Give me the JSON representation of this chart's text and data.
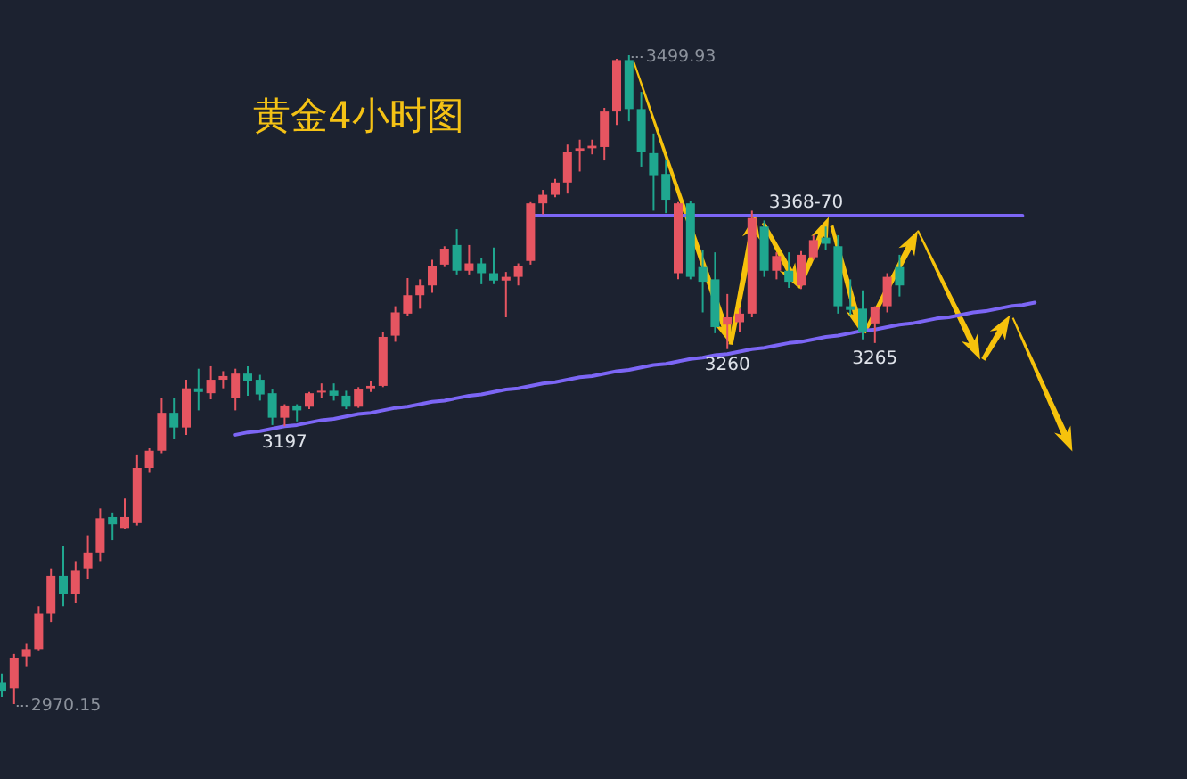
{
  "chart_data": {
    "type": "candlestick",
    "title": "黄金4小时图",
    "categories": [
      null,
      null,
      null,
      null,
      null,
      null,
      null,
      null,
      null,
      null,
      null,
      null,
      null,
      null,
      null,
      null,
      null,
      null,
      null,
      null,
      null,
      null,
      null,
      null,
      null,
      null,
      null,
      null,
      null,
      null,
      null,
      null,
      null,
      null,
      null,
      null,
      null,
      null,
      null,
      null,
      null,
      null,
      null,
      null,
      null,
      null,
      null,
      null,
      null,
      null,
      null,
      null,
      null,
      null,
      null,
      null,
      null,
      null,
      null,
      null,
      null,
      null,
      null,
      null,
      null,
      null,
      null,
      null,
      null,
      null,
      null,
      null,
      null,
      null,
      null,
      null,
      null,
      null,
      null,
      null,
      null,
      null,
      null,
      null,
      null
    ],
    "ohlc": [
      [
        2988,
        2995,
        2976,
        2981
      ],
      [
        2983,
        3011,
        2970.15,
        3008
      ],
      [
        3009,
        3020,
        3001,
        3015
      ],
      [
        3015,
        3050,
        3014,
        3044
      ],
      [
        3044,
        3081,
        3037,
        3075
      ],
      [
        3075,
        3099,
        3050,
        3060
      ],
      [
        3060,
        3087,
        3053,
        3079
      ],
      [
        3081,
        3108,
        3072,
        3094
      ],
      [
        3094,
        3130,
        3087,
        3122
      ],
      [
        3123,
        3126,
        3104,
        3117
      ],
      [
        3114,
        3138,
        3113,
        3123
      ],
      [
        3118,
        3174,
        3116,
        3163
      ],
      [
        3163,
        3179,
        3159,
        3177
      ],
      [
        3177,
        3220,
        3175,
        3208
      ],
      [
        3208,
        3220,
        3187,
        3196
      ],
      [
        3196,
        3235,
        3190,
        3228
      ],
      [
        3228,
        3244,
        3210,
        3225
      ],
      [
        3224,
        3246,
        3219,
        3235
      ],
      [
        3235,
        3242,
        3228,
        3238
      ],
      [
        3220,
        3244,
        3210,
        3240
      ],
      [
        3240,
        3246,
        3222,
        3234
      ],
      [
        3235,
        3239,
        3218,
        3223
      ],
      [
        3224,
        3227,
        3198,
        3204
      ],
      [
        3204,
        3215,
        3197,
        3214
      ],
      [
        3214,
        3215,
        3201,
        3210
      ],
      [
        3213,
        3225,
        3211,
        3224
      ],
      [
        3225,
        3232,
        3220,
        3226
      ],
      [
        3226,
        3232,
        3218,
        3222
      ],
      [
        3222,
        3226,
        3211,
        3213
      ],
      [
        3213,
        3229,
        3212,
        3227
      ],
      [
        3228,
        3234,
        3225,
        3230
      ],
      [
        3230,
        3274,
        3229,
        3270
      ],
      [
        3271,
        3295,
        3266,
        3290
      ],
      [
        3289,
        3318,
        3287,
        3304
      ],
      [
        3304,
        3317,
        3293,
        3312
      ],
      [
        3312,
        3333,
        3306,
        3328
      ],
      [
        3329,
        3344,
        3327,
        3342
      ],
      [
        3345,
        3358,
        3321,
        3324
      ],
      [
        3324,
        3345,
        3321,
        3330
      ],
      [
        3330,
        3334,
        3313,
        3322
      ],
      [
        3322,
        3343,
        3313,
        3316
      ],
      [
        3316,
        3323,
        3286,
        3319
      ],
      [
        3319,
        3330,
        3312,
        3328
      ],
      [
        3332,
        3380,
        3329,
        3379
      ],
      [
        3379,
        3390,
        3370,
        3386
      ],
      [
        3386,
        3399,
        3384,
        3396
      ],
      [
        3396,
        3427,
        3387,
        3421
      ],
      [
        3422,
        3431,
        3405,
        3424
      ],
      [
        3424,
        3431,
        3419,
        3426
      ],
      [
        3425,
        3457,
        3414,
        3454
      ],
      [
        3454,
        3497,
        3443,
        3496
      ],
      [
        3496,
        3499.93,
        3446,
        3456
      ],
      [
        3456,
        3470,
        3409,
        3421
      ],
      [
        3420,
        3436,
        3373,
        3402
      ],
      [
        3403,
        3414,
        3371,
        3382
      ],
      [
        3322,
        3380,
        3317,
        3379
      ],
      [
        3379,
        3381,
        3317,
        3319
      ],
      [
        3327,
        3341,
        3290,
        3315
      ],
      [
        3317,
        3339,
        3273,
        3278
      ],
      [
        3280,
        3305,
        3260,
        3286
      ],
      [
        3282,
        3293,
        3274,
        3289
      ],
      [
        3289,
        3373,
        3286,
        3367
      ],
      [
        3360,
        3365,
        3319,
        3324
      ],
      [
        3324,
        3339,
        3317,
        3336
      ],
      [
        3324,
        3339,
        3310,
        3315
      ],
      [
        3312,
        3340,
        3309,
        3337
      ],
      [
        3335,
        3353,
        3333,
        3349
      ],
      [
        3351,
        3360,
        3341,
        3346
      ],
      [
        3344,
        3353,
        3289,
        3295
      ],
      [
        3295,
        3317,
        3288,
        3292
      ],
      [
        3293,
        3308,
        3268,
        3274
      ],
      [
        3281,
        3295,
        3265,
        3294
      ],
      [
        3295,
        3322,
        3290,
        3319
      ],
      [
        3327,
        3337,
        3303,
        3312
      ],
      null,
      null,
      null,
      null,
      null,
      null,
      null,
      null,
      null,
      null,
      null
    ],
    "colors": [
      "#1fa78f",
      "#e65561",
      "#e65561",
      "#e65561",
      "#e65561",
      "#1fa78f",
      "#e65561",
      "#e65561",
      "#e65561",
      "#1fa78f",
      "#e65561",
      "#e65561",
      "#e65561",
      "#e65561",
      "#1fa78f",
      "#e65561",
      "#1fa78f",
      "#e65561",
      "#e65561",
      "#e65561",
      "#1fa78f",
      "#1fa78f",
      "#1fa78f",
      "#e65561",
      "#1fa78f",
      "#e65561",
      "#e65561",
      "#1fa78f",
      "#1fa78f",
      "#e65561",
      "#e65561",
      "#e65561",
      "#e65561",
      "#e65561",
      "#e65561",
      "#e65561",
      "#e65561",
      "#1fa78f",
      "#e65561",
      "#1fa78f",
      "#1fa78f",
      "#e65561",
      "#e65561",
      "#e65561",
      "#e65561",
      "#e65561",
      "#e65561",
      "#e65561",
      "#e65561",
      "#e65561",
      "#e65561",
      "#1fa78f",
      "#1fa78f",
      "#1fa78f",
      "#1fa78f",
      "#e65561",
      "#1fa78f",
      "#1fa78f",
      "#1fa78f",
      "#e65561",
      "#e65561",
      "#e65561",
      "#1fa78f",
      "#e65561",
      "#1fa78f",
      "#e65561",
      "#e65561",
      "#1fa78f",
      "#1fa78f",
      "#1fa78f",
      "#1fa78f",
      "#e65561",
      "#e65561",
      "#1fa78f",
      null,
      null,
      null,
      null,
      null,
      null,
      null,
      null,
      null,
      null,
      null
    ],
    "series": [
      {
        "type": "line",
        "color": "#7c66f5",
        "values": [
          null,
          null,
          null,
          null,
          null,
          null,
          null,
          null,
          null,
          null,
          null,
          null,
          null,
          null,
          null,
          null,
          null,
          null,
          null,
          null,
          null,
          null,
          null,
          null,
          null,
          null,
          null,
          null,
          null,
          null,
          null,
          null,
          null,
          null,
          null,
          null,
          null,
          null,
          null,
          null,
          null,
          null,
          null,
          3369,
          3369,
          3369,
          3369,
          3369,
          3369,
          3369,
          3369,
          3369,
          3369,
          3369,
          3369,
          3369,
          3369,
          3369,
          3369,
          3369,
          3369,
          3369,
          3369,
          3369,
          3369,
          3369,
          3369,
          3369,
          3369,
          3369,
          3369,
          3369,
          3369,
          3369,
          3369,
          3369,
          3369,
          3369,
          3369,
          3369,
          3369,
          3369,
          3369,
          3369,
          null
        ]
      },
      {
        "type": "line",
        "color": "#7c66f5",
        "values": [
          null,
          null,
          null,
          null,
          null,
          null,
          null,
          null,
          null,
          null,
          null,
          null,
          null,
          null,
          null,
          null,
          null,
          null,
          null,
          3190,
          3192,
          3193,
          3195,
          3197,
          3198,
          3200,
          3202,
          3203,
          3205,
          3207,
          3208,
          3210,
          3212,
          3213,
          3215,
          3217,
          3218,
          3220,
          3222,
          3223,
          3225,
          3227,
          3228,
          3230,
          3232,
          3233,
          3235,
          3237,
          3238,
          3240,
          3242,
          3243,
          3245,
          3247,
          3248,
          3250,
          3252,
          3253,
          3255,
          3256,
          3258,
          3260,
          3261,
          3263,
          3265,
          3266,
          3268,
          3270,
          3271,
          3273,
          3275,
          3276,
          3278,
          3280,
          3281,
          3283,
          3285,
          3286,
          3288,
          3290,
          3291,
          3293,
          3295,
          3296,
          3298
        ]
      }
    ],
    "annotations": [
      "3499.93",
      "2970.15",
      {
        "text": "3197",
        "y": 3197
      },
      {
        "text": "3260",
        "y": 3260
      },
      {
        "text": "3265",
        "y": 3265
      },
      {
        "text": "3368-70",
        "y": 3369
      }
    ]
  }
}
